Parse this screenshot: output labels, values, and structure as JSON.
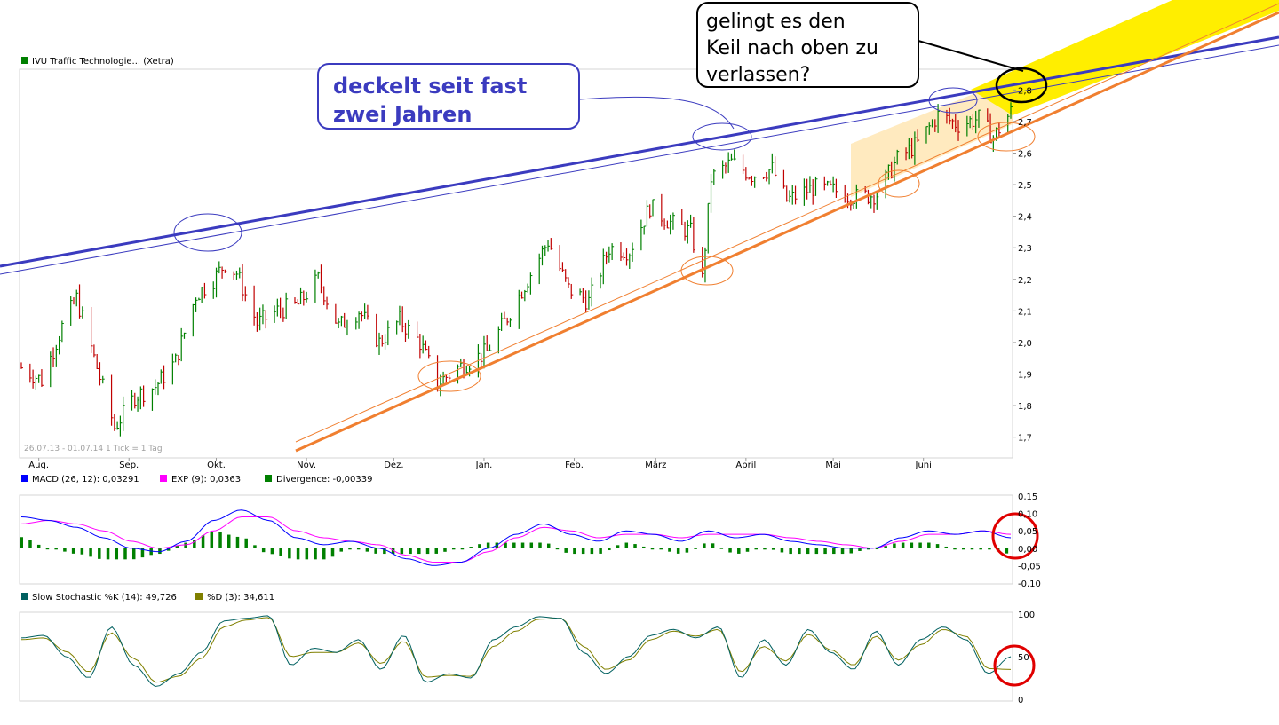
{
  "chart_data": [
    {
      "type": "ohlc",
      "series": [
        {
          "name": "IVU Traffic Technologie... (Xetra)",
          "color": "#008000"
        }
      ],
      "info_text": "26.07.13 - 01.07.14   1 Tick = 1 Tag",
      "x_tick_labels": [
        "Aug.",
        "Sep.",
        "Okt.",
        "Nov.",
        "Dez.",
        "Jan.",
        "Feb.",
        "März",
        "April",
        "Mai",
        "Juni"
      ],
      "y_tick_labels": [
        "1,7",
        "1,8",
        "1,9",
        "2,0",
        "2,1",
        "2,2",
        "2,3",
        "2,4",
        "2,5",
        "2,6",
        "2,7",
        "2,8"
      ],
      "ylim": [
        1.64,
        2.86
      ],
      "up_color": "#008000",
      "down_color": "#c00000",
      "price_path": [
        {
          "d": "2013-07-26",
          "v": 1.92
        },
        {
          "d": "2013-08-02",
          "v": 1.88
        },
        {
          "d": "2013-08-09",
          "v": 2.05
        },
        {
          "d": "2013-08-14",
          "v": 2.14
        },
        {
          "d": "2013-08-21",
          "v": 1.92
        },
        {
          "d": "2013-08-27",
          "v": 1.73
        },
        {
          "d": "2013-09-03",
          "v": 1.83
        },
        {
          "d": "2013-09-10",
          "v": 1.86
        },
        {
          "d": "2013-09-17",
          "v": 1.94
        },
        {
          "d": "2013-09-24",
          "v": 2.15
        },
        {
          "d": "2013-09-30",
          "v": 2.2
        },
        {
          "d": "2013-10-04",
          "v": 2.25
        },
        {
          "d": "2013-10-08",
          "v": 2.22
        },
        {
          "d": "2013-10-15",
          "v": 2.06
        },
        {
          "d": "2013-10-22",
          "v": 2.1
        },
        {
          "d": "2013-10-29",
          "v": 2.12
        },
        {
          "d": "2013-11-05",
          "v": 2.2
        },
        {
          "d": "2013-11-12",
          "v": 2.05
        },
        {
          "d": "2013-11-19",
          "v": 2.1
        },
        {
          "d": "2013-11-26",
          "v": 2.0
        },
        {
          "d": "2013-12-03",
          "v": 2.07
        },
        {
          "d": "2013-12-10",
          "v": 2.0
        },
        {
          "d": "2013-12-16",
          "v": 1.87
        },
        {
          "d": "2013-12-23",
          "v": 1.92
        },
        {
          "d": "2014-01-02",
          "v": 1.97
        },
        {
          "d": "2014-01-09",
          "v": 2.08
        },
        {
          "d": "2014-01-16",
          "v": 2.2
        },
        {
          "d": "2014-01-23",
          "v": 2.32
        },
        {
          "d": "2014-01-30",
          "v": 2.17
        },
        {
          "d": "2014-02-06",
          "v": 2.13
        },
        {
          "d": "2014-02-13",
          "v": 2.3
        },
        {
          "d": "2014-02-20",
          "v": 2.29
        },
        {
          "d": "2014-02-27",
          "v": 2.43
        },
        {
          "d": "2014-03-06",
          "v": 2.38
        },
        {
          "d": "2014-03-13",
          "v": 2.35
        },
        {
          "d": "2014-03-17",
          "v": 2.2
        },
        {
          "d": "2014-03-20",
          "v": 2.52
        },
        {
          "d": "2014-03-27",
          "v": 2.57
        },
        {
          "d": "2014-04-03",
          "v": 2.53
        },
        {
          "d": "2014-04-10",
          "v": 2.55
        },
        {
          "d": "2014-04-15",
          "v": 2.45
        },
        {
          "d": "2014-04-24",
          "v": 2.49
        },
        {
          "d": "2014-05-02",
          "v": 2.48
        },
        {
          "d": "2014-05-09",
          "v": 2.46
        },
        {
          "d": "2014-05-16",
          "v": 2.47
        },
        {
          "d": "2014-05-23",
          "v": 2.58
        },
        {
          "d": "2014-05-30",
          "v": 2.63
        },
        {
          "d": "2014-06-06",
          "v": 2.72
        },
        {
          "d": "2014-06-13",
          "v": 2.69
        },
        {
          "d": "2014-06-20",
          "v": 2.71
        },
        {
          "d": "2014-06-25",
          "v": 2.65
        },
        {
          "d": "2014-07-01",
          "v": 2.73
        }
      ],
      "trendlines": [
        {
          "name": "resistance",
          "color": "#3b3bbf",
          "points": [
            [
              "2013-07-26",
              2.19
            ],
            [
              "2014-07-01",
              2.79
            ]
          ]
        },
        {
          "name": "support",
          "color": "#f07f30",
          "points": [
            [
              "2013-11-15",
              1.71
            ],
            [
              "2014-07-01",
              2.63
            ]
          ]
        }
      ],
      "annotations": [
        {
          "text": [
            "deckelt seit fast",
            "zwei Jahren"
          ],
          "color": "#3b3bbf"
        },
        {
          "text": [
            "gelingt es den",
            "Keil nach oben zu",
            "verlassen?"
          ],
          "color": "#000000"
        }
      ]
    },
    {
      "type": "line",
      "legend": [
        {
          "label": "MACD (26, 12): 0,03291",
          "color": "#0000ff"
        },
        {
          "label": "EXP (9): 0,0363",
          "color": "#ff00ff"
        },
        {
          "label": "Divergence: -0,00339",
          "color": "#008000"
        }
      ],
      "y_tick_labels": [
        "0,15",
        "0,10",
        "0,05",
        "0,00",
        "-0,05",
        "-0,10"
      ],
      "ylim": [
        -0.1,
        0.15
      ],
      "macd_path": [
        0.09,
        0.08,
        0.06,
        0.03,
        0.0,
        -0.01,
        0.02,
        0.08,
        0.11,
        0.08,
        0.03,
        0.01,
        0.02,
        0.0,
        -0.03,
        -0.05,
        -0.04,
        0.0,
        0.04,
        0.07,
        0.04,
        0.02,
        0.05,
        0.04,
        0.02,
        0.05,
        0.03,
        0.04,
        0.02,
        0.01,
        0.0,
        0.0,
        0.03,
        0.05,
        0.04,
        0.05,
        0.03
      ],
      "signal_path": [
        0.07,
        0.08,
        0.07,
        0.05,
        0.02,
        0.0,
        0.01,
        0.05,
        0.09,
        0.09,
        0.05,
        0.03,
        0.02,
        0.01,
        -0.02,
        -0.04,
        -0.04,
        -0.01,
        0.03,
        0.06,
        0.05,
        0.03,
        0.04,
        0.04,
        0.03,
        0.04,
        0.04,
        0.04,
        0.03,
        0.02,
        0.01,
        0.0,
        0.02,
        0.04,
        0.04,
        0.05,
        0.04
      ]
    },
    {
      "type": "line",
      "legend": [
        {
          "label": "Slow Stochastic %K (14): 49,726",
          "color": "#006060"
        },
        {
          "label": "%D (3): 34,611",
          "color": "#808000"
        }
      ],
      "y_tick_labels": [
        "100",
        "50",
        "0"
      ],
      "ylim": [
        0,
        100
      ],
      "k_path": [
        72,
        75,
        50,
        25,
        85,
        40,
        15,
        30,
        55,
        92,
        95,
        98,
        40,
        60,
        55,
        70,
        35,
        75,
        20,
        30,
        25,
        70,
        85,
        97,
        95,
        55,
        30,
        50,
        75,
        82,
        72,
        85,
        25,
        70,
        40,
        82,
        55,
        35,
        80,
        40,
        70,
        85,
        70,
        30,
        50
      ],
      "d_path": [
        70,
        72,
        56,
        32,
        78,
        48,
        20,
        27,
        48,
        85,
        93,
        96,
        50,
        55,
        55,
        66,
        42,
        68,
        26,
        28,
        27,
        62,
        80,
        94,
        95,
        62,
        35,
        46,
        70,
        80,
        74,
        82,
        32,
        62,
        45,
        76,
        58,
        40,
        74,
        46,
        64,
        82,
        74,
        36,
        35
      ]
    }
  ]
}
